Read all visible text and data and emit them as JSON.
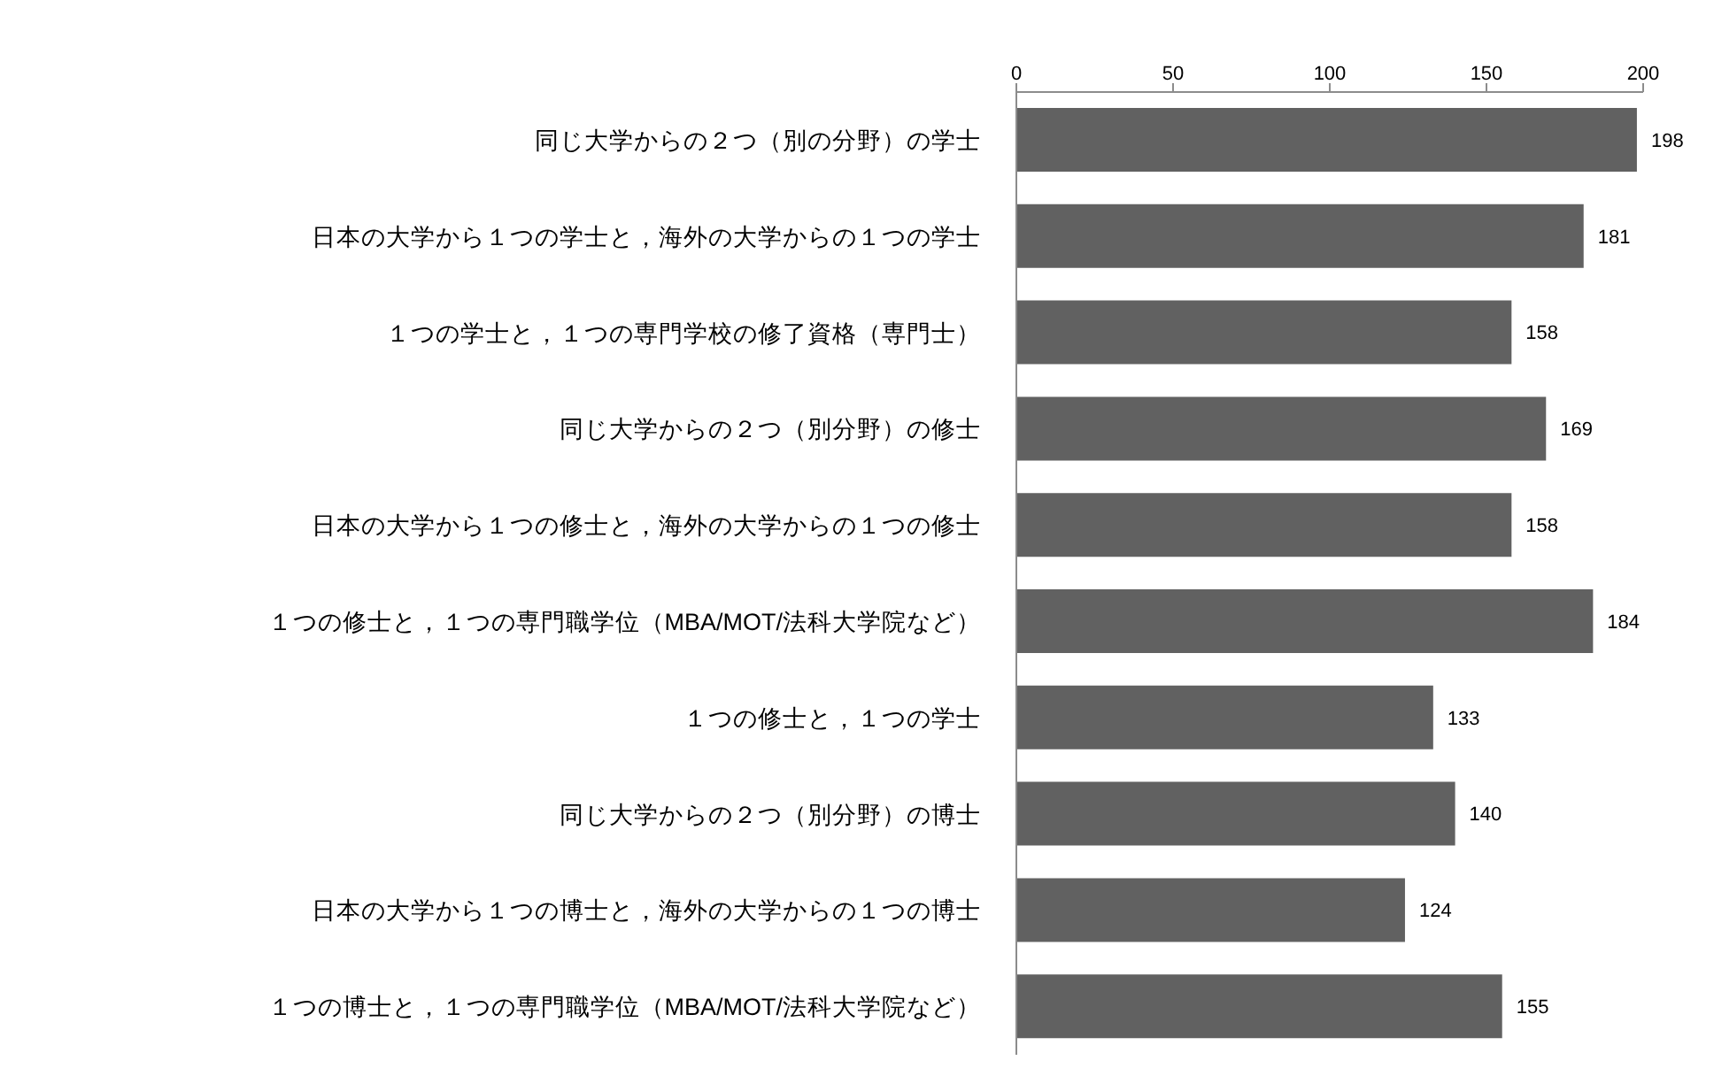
{
  "chart_data": {
    "type": "bar",
    "orientation": "horizontal",
    "categories": [
      "同じ大学からの２つ（別の分野）の学士",
      "日本の大学から１つの学士と，海外の大学からの１つの学士",
      "１つの学士と，１つの専門学校の修了資格（専門士）",
      "同じ大学からの２つ（別分野）の修士",
      "日本の大学から１つの修士と，海外の大学からの１つの修士",
      "１つの修士と，１つの専門職学位（MBA/MOT/法科大学院など）",
      "１つの修士と，１つの学士",
      "同じ大学からの２つ（別分野）の博士",
      "日本の大学から１つの博士と，海外の大学からの１つの博士",
      "１つの博士と，１つの専門職学位（MBA/MOT/法科大学院など）"
    ],
    "values": [
      198,
      181,
      158,
      169,
      158,
      184,
      133,
      140,
      124,
      155
    ],
    "color": "#616161",
    "xlim": [
      0,
      200
    ],
    "xticks": [
      0,
      50,
      100,
      150,
      200
    ],
    "data_labels": true
  }
}
